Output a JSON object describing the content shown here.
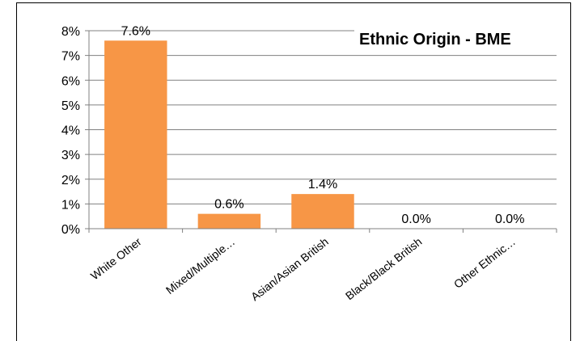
{
  "chart_data": {
    "type": "bar",
    "title": "Ethnic Origin - BME",
    "categories": [
      "White Other",
      "Mixed/Multiple…",
      "Asian/Asian British",
      "Black/Black British",
      "Other Ethnic…"
    ],
    "values": [
      7.6,
      0.6,
      1.4,
      0.0,
      0.0
    ],
    "data_labels": [
      "7.6%",
      "0.6%",
      "1.4%",
      "0.0%",
      "0.0%"
    ],
    "y_ticks": [
      "0%",
      "1%",
      "2%",
      "3%",
      "4%",
      "5%",
      "6%",
      "7%",
      "8%"
    ],
    "ylim": [
      0,
      8
    ],
    "grid": true,
    "legend": "none",
    "colors": {
      "bar": "#F79646",
      "grid": "#808080",
      "axis": "#808080"
    }
  }
}
